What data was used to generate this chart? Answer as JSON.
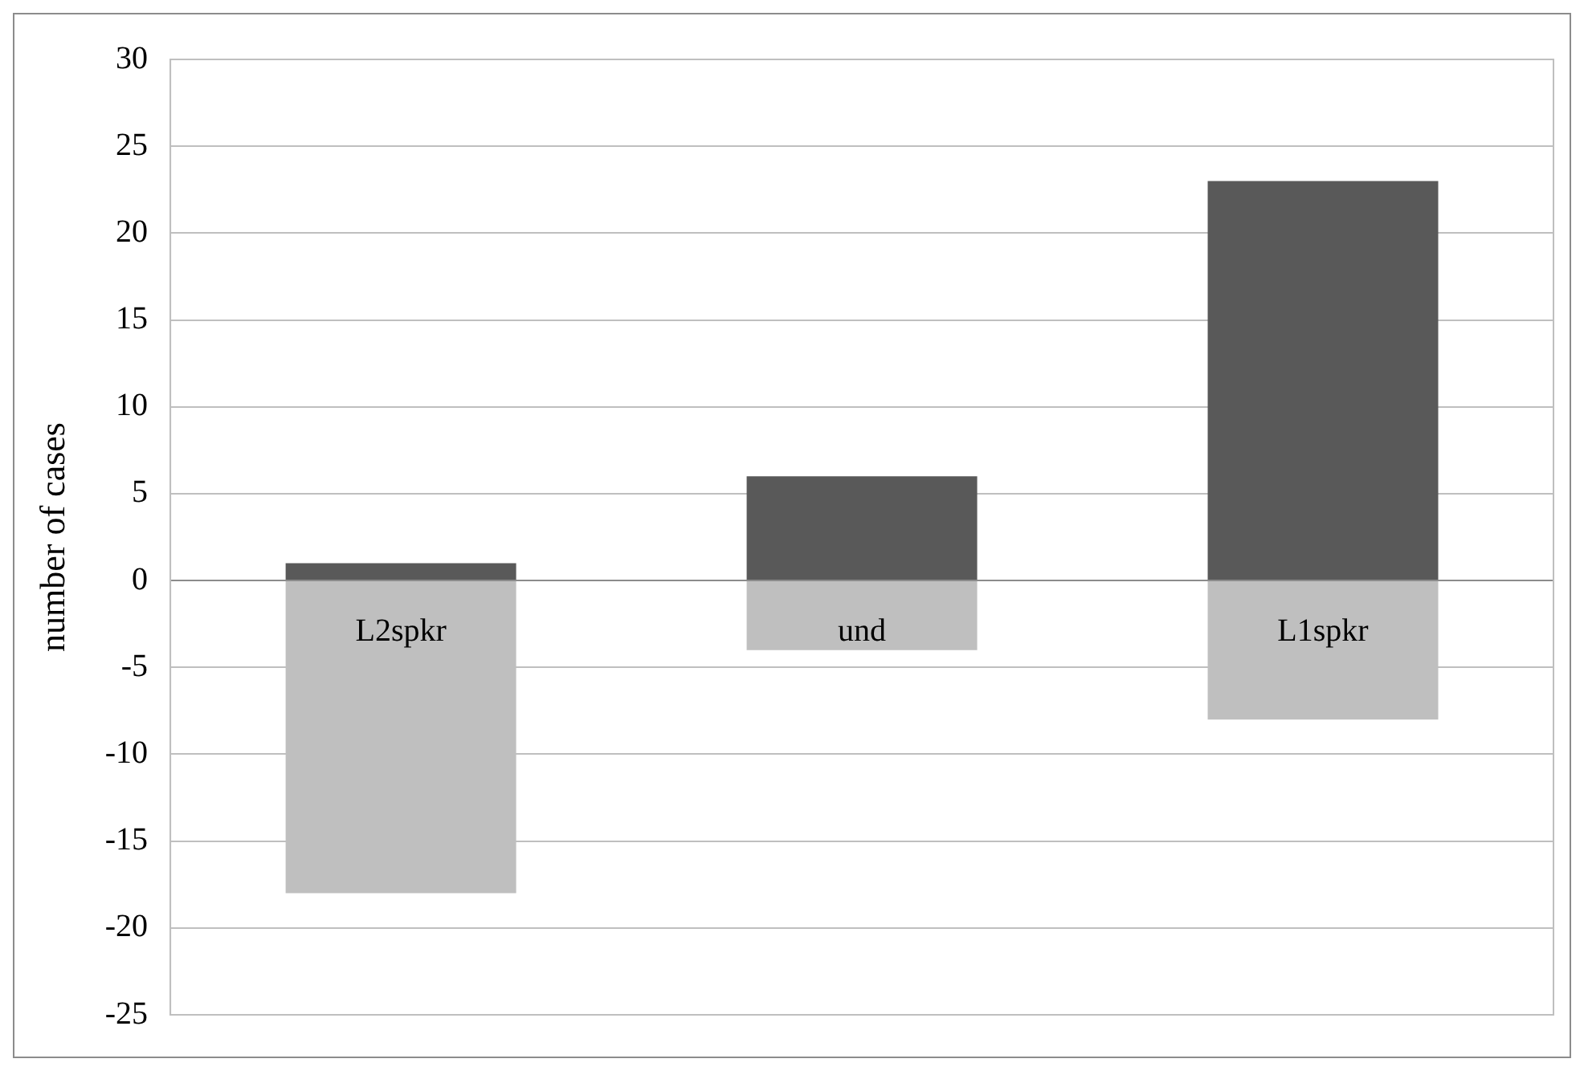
{
  "chart_data": {
    "type": "bar",
    "ylabel": "number of cases",
    "categories": [
      "L2spkr",
      "und",
      "L1spkr"
    ],
    "stacked": true,
    "series": [
      {
        "color": "#595959",
        "values": [
          1,
          6,
          23
        ]
      },
      {
        "color": "#bfbfbf",
        "values": [
          -18,
          -4,
          -8
        ]
      }
    ],
    "ylim": [
      -25,
      30
    ],
    "yticks": [
      -25,
      -20,
      -15,
      -10,
      -5,
      0,
      5,
      10,
      15,
      20,
      25,
      30
    ],
    "grid": "y",
    "legend": false
  }
}
